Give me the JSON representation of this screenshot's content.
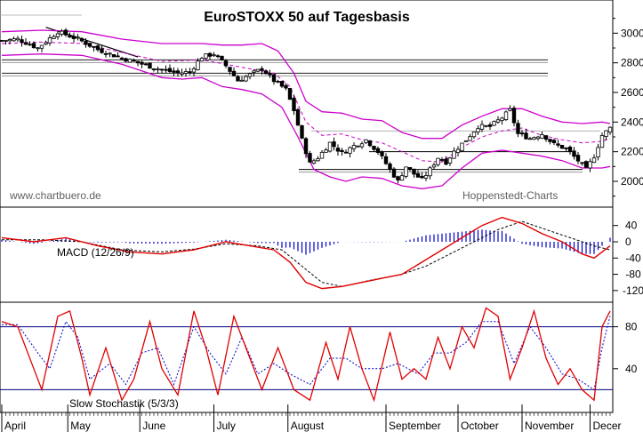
{
  "chart_data": {
    "type": "candlestick",
    "title": "EuroSTOXX 50 auf Tagesbasis",
    "watermark_left": "www.chartbuero.de",
    "watermark_right": "Hoppenstedt-Charts",
    "months": [
      "April",
      "May",
      "June",
      "July",
      "August",
      "September",
      "October",
      "November",
      "Decer"
    ],
    "colors": {
      "price": "#000000",
      "bollinger": "#cc00cc",
      "ma": "#cc00cc",
      "macd": "#e00000",
      "signal": "#000000",
      "hist": "#0000cc",
      "stoch_k": "#e00000",
      "stoch_d": "#0000cc",
      "level": "#000080"
    },
    "price_panel": {
      "ylim": [
        1850,
        3200
      ],
      "y_ticks": [
        2000,
        2200,
        2400,
        2600,
        2800,
        3000
      ],
      "series_points": [
        [
          0,
          2950
        ],
        [
          4,
          2960
        ],
        [
          9,
          2900
        ],
        [
          14,
          3010
        ],
        [
          19,
          2960
        ],
        [
          24,
          2890
        ],
        [
          29,
          2840
        ],
        [
          34,
          2800
        ],
        [
          39,
          2760
        ],
        [
          44,
          2730
        ],
        [
          47,
          2740
        ],
        [
          50,
          2840
        ],
        [
          53,
          2860
        ],
        [
          56,
          2780
        ],
        [
          59,
          2680
        ],
        [
          62,
          2720
        ],
        [
          65,
          2760
        ],
        [
          68,
          2680
        ],
        [
          71,
          2620
        ],
        [
          73,
          2480
        ],
        [
          75,
          2280
        ],
        [
          77,
          2120
        ],
        [
          79,
          2160
        ],
        [
          82,
          2260
        ],
        [
          85,
          2190
        ],
        [
          88,
          2240
        ],
        [
          91,
          2280
        ],
        [
          94,
          2200
        ],
        [
          97,
          2080
        ],
        [
          99,
          2000
        ],
        [
          101,
          2100
        ],
        [
          103,
          2050
        ],
        [
          105,
          2010
        ],
        [
          107,
          2080
        ],
        [
          109,
          2160
        ],
        [
          111,
          2130
        ],
        [
          113,
          2200
        ],
        [
          116,
          2280
        ],
        [
          119,
          2370
        ],
        [
          122,
          2370
        ],
        [
          125,
          2430
        ],
        [
          127,
          2480
        ],
        [
          129,
          2320
        ],
        [
          132,
          2290
        ],
        [
          135,
          2320
        ],
        [
          138,
          2250
        ],
        [
          141,
          2220
        ],
        [
          144,
          2140
        ],
        [
          146,
          2080
        ],
        [
          148,
          2170
        ],
        [
          150,
          2310
        ],
        [
          152,
          2360
        ]
      ],
      "bollinger_upper": [
        [
          0,
          3010
        ],
        [
          10,
          3020
        ],
        [
          20,
          3010
        ],
        [
          30,
          2960
        ],
        [
          40,
          2930
        ],
        [
          45,
          2930
        ],
        [
          50,
          2930
        ],
        [
          55,
          2920
        ],
        [
          60,
          2920
        ],
        [
          65,
          2930
        ],
        [
          69,
          2880
        ],
        [
          73,
          2730
        ],
        [
          76,
          2540
        ],
        [
          80,
          2470
        ],
        [
          85,
          2460
        ],
        [
          90,
          2420
        ],
        [
          95,
          2410
        ],
        [
          100,
          2330
        ],
        [
          105,
          2290
        ],
        [
          110,
          2290
        ],
        [
          115,
          2380
        ],
        [
          120,
          2440
        ],
        [
          125,
          2490
        ],
        [
          130,
          2490
        ],
        [
          135,
          2440
        ],
        [
          140,
          2400
        ],
        [
          145,
          2390
        ],
        [
          150,
          2400
        ],
        [
          152,
          2390
        ]
      ],
      "bollinger_lower": [
        [
          0,
          2850
        ],
        [
          10,
          2860
        ],
        [
          20,
          2850
        ],
        [
          30,
          2790
        ],
        [
          40,
          2700
        ],
        [
          45,
          2690
        ],
        [
          50,
          2700
        ],
        [
          55,
          2640
        ],
        [
          60,
          2620
        ],
        [
          65,
          2590
        ],
        [
          70,
          2500
        ],
        [
          74,
          2300
        ],
        [
          78,
          2080
        ],
        [
          82,
          2030
        ],
        [
          86,
          2000
        ],
        [
          90,
          2030
        ],
        [
          95,
          2020
        ],
        [
          100,
          1970
        ],
        [
          105,
          1950
        ],
        [
          110,
          1970
        ],
        [
          115,
          2090
        ],
        [
          120,
          2190
        ],
        [
          125,
          2210
        ],
        [
          130,
          2190
        ],
        [
          135,
          2170
        ],
        [
          140,
          2140
        ],
        [
          145,
          2090
        ],
        [
          150,
          2090
        ],
        [
          152,
          2100
        ]
      ],
      "moving_average": [
        [
          0,
          2930
        ],
        [
          10,
          2940
        ],
        [
          20,
          2930
        ],
        [
          30,
          2870
        ],
        [
          40,
          2810
        ],
        [
          50,
          2820
        ],
        [
          60,
          2770
        ],
        [
          68,
          2730
        ],
        [
          72,
          2640
        ],
        [
          76,
          2400
        ],
        [
          80,
          2310
        ],
        [
          85,
          2320
        ],
        [
          90,
          2280
        ],
        [
          95,
          2260
        ],
        [
          100,
          2200
        ],
        [
          105,
          2140
        ],
        [
          110,
          2130
        ],
        [
          115,
          2230
        ],
        [
          120,
          2300
        ],
        [
          125,
          2340
        ],
        [
          130,
          2360
        ],
        [
          135,
          2310
        ],
        [
          140,
          2280
        ],
        [
          145,
          2260
        ],
        [
          150,
          2270
        ],
        [
          152,
          2290
        ]
      ],
      "horizontal_lines": [
        2820,
        2730,
        2200,
        2080,
        2340
      ],
      "trendline": [
        [
          11,
          3040
        ],
        [
          34,
          2840
        ]
      ]
    },
    "macd_panel": {
      "label": "MACD (12/26/9)",
      "ylim": [
        -140,
        70
      ],
      "y_ticks": [
        40,
        0,
        -40,
        -80,
        -120
      ],
      "macd": [
        [
          0,
          10
        ],
        [
          8,
          0
        ],
        [
          16,
          10
        ],
        [
          24,
          -10
        ],
        [
          32,
          -25
        ],
        [
          40,
          -30
        ],
        [
          48,
          -20
        ],
        [
          56,
          0
        ],
        [
          62,
          -10
        ],
        [
          68,
          -20
        ],
        [
          72,
          -50
        ],
        [
          76,
          -100
        ],
        [
          80,
          -115
        ],
        [
          85,
          -110
        ],
        [
          90,
          -100
        ],
        [
          95,
          -90
        ],
        [
          100,
          -80
        ],
        [
          105,
          -50
        ],
        [
          110,
          -20
        ],
        [
          115,
          10
        ],
        [
          120,
          40
        ],
        [
          125,
          60
        ],
        [
          130,
          45
        ],
        [
          135,
          20
        ],
        [
          140,
          0
        ],
        [
          145,
          -30
        ],
        [
          148,
          -40
        ],
        [
          152,
          -10
        ]
      ],
      "signal": [
        [
          0,
          5
        ],
        [
          10,
          5
        ],
        [
          20,
          0
        ],
        [
          30,
          -20
        ],
        [
          40,
          -25
        ],
        [
          48,
          -18
        ],
        [
          56,
          -5
        ],
        [
          64,
          -10
        ],
        [
          70,
          -20
        ],
        [
          75,
          -60
        ],
        [
          80,
          -100
        ],
        [
          85,
          -110
        ],
        [
          92,
          -95
        ],
        [
          100,
          -80
        ],
        [
          106,
          -60
        ],
        [
          112,
          -30
        ],
        [
          118,
          0
        ],
        [
          124,
          30
        ],
        [
          130,
          50
        ],
        [
          136,
          30
        ],
        [
          142,
          10
        ],
        [
          148,
          -10
        ],
        [
          152,
          -20
        ]
      ]
    },
    "stoch_panel": {
      "label": "Slow Stochastik (5/3/3)",
      "ylim": [
        0,
        100
      ],
      "y_ticks": [
        80,
        40
      ],
      "levels": [
        80,
        20
      ],
      "k_line": [
        [
          0,
          85
        ],
        [
          4,
          80
        ],
        [
          8,
          40
        ],
        [
          10,
          20
        ],
        [
          14,
          90
        ],
        [
          17,
          95
        ],
        [
          20,
          50
        ],
        [
          22,
          15
        ],
        [
          26,
          60
        ],
        [
          30,
          10
        ],
        [
          33,
          30
        ],
        [
          37,
          85
        ],
        [
          40,
          40
        ],
        [
          44,
          15
        ],
        [
          48,
          95
        ],
        [
          51,
          60
        ],
        [
          54,
          15
        ],
        [
          58,
          90
        ],
        [
          62,
          50
        ],
        [
          65,
          20
        ],
        [
          69,
          60
        ],
        [
          73,
          20
        ],
        [
          77,
          10
        ],
        [
          81,
          65
        ],
        [
          84,
          30
        ],
        [
          87,
          80
        ],
        [
          90,
          40
        ],
        [
          93,
          10
        ],
        [
          97,
          75
        ],
        [
          100,
          30
        ],
        [
          103,
          40
        ],
        [
          106,
          30
        ],
        [
          109,
          70
        ],
        [
          112,
          40
        ],
        [
          115,
          80
        ],
        [
          118,
          60
        ],
        [
          121,
          98
        ],
        [
          124,
          90
        ],
        [
          127,
          30
        ],
        [
          130,
          60
        ],
        [
          133,
          95
        ],
        [
          136,
          50
        ],
        [
          139,
          25
        ],
        [
          142,
          40
        ],
        [
          145,
          20
        ],
        [
          148,
          10
        ],
        [
          150,
          80
        ],
        [
          152,
          95
        ]
      ],
      "d_line": [
        [
          0,
          82
        ],
        [
          4,
          82
        ],
        [
          9,
          55
        ],
        [
          12,
          40
        ],
        [
          16,
          85
        ],
        [
          19,
          70
        ],
        [
          22,
          30
        ],
        [
          27,
          45
        ],
        [
          31,
          25
        ],
        [
          35,
          55
        ],
        [
          39,
          60
        ],
        [
          43,
          25
        ],
        [
          48,
          80
        ],
        [
          52,
          55
        ],
        [
          56,
          35
        ],
        [
          60,
          70
        ],
        [
          64,
          35
        ],
        [
          68,
          45
        ],
        [
          72,
          35
        ],
        [
          77,
          25
        ],
        [
          82,
          50
        ],
        [
          86,
          50
        ],
        [
          90,
          40
        ],
        [
          95,
          40
        ],
        [
          99,
          45
        ],
        [
          104,
          35
        ],
        [
          108,
          55
        ],
        [
          112,
          55
        ],
        [
          116,
          65
        ],
        [
          120,
          85
        ],
        [
          124,
          85
        ],
        [
          128,
          45
        ],
        [
          132,
          80
        ],
        [
          136,
          60
        ],
        [
          140,
          35
        ],
        [
          144,
          30
        ],
        [
          148,
          20
        ],
        [
          150,
          60
        ],
        [
          152,
          90
        ]
      ]
    }
  }
}
